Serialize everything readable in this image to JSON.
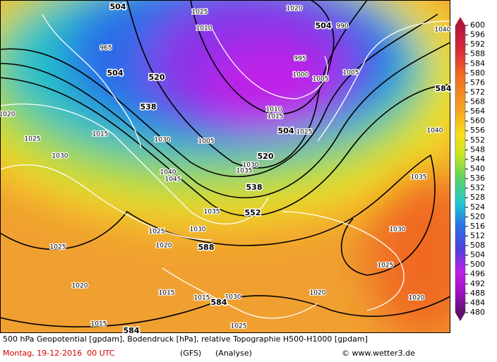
{
  "map": {
    "geopotential_labels": [
      "504",
      "504",
      "520",
      "538",
      "504",
      "520",
      "538",
      "552",
      "588",
      "584",
      "584",
      "584",
      "504"
    ],
    "pressure_labels": [
      "1025",
      "1020",
      "990",
      "1040",
      "1010",
      "965",
      "995",
      "1000",
      "1005",
      "1005",
      "1010",
      "1015",
      "1025",
      "1020",
      "1025",
      "1030",
      "1015",
      "1030",
      "1040",
      "1045",
      "1035",
      "1030",
      "1025",
      "1020",
      "1025",
      "1020",
      "1015",
      "1015",
      "1030",
      "1025",
      "1015",
      "1020",
      "1025",
      "1030",
      "1035",
      "1040",
      "1020",
      "1035",
      "1030",
      "1005"
    ]
  },
  "colorbar": {
    "ticks": [
      600,
      596,
      592,
      588,
      584,
      580,
      576,
      572,
      568,
      564,
      560,
      556,
      552,
      548,
      544,
      540,
      536,
      532,
      528,
      524,
      520,
      516,
      512,
      508,
      504,
      500,
      496,
      492,
      488,
      484,
      480
    ]
  },
  "footer": {
    "description": "500 hPa Geopotential [gpdam], Bodendruck [hPa], relative Topographie H500-H1000 [gpdam]",
    "date": "Montag, 19-12-2016  00 UTC",
    "model": "(GFS)",
    "run": "(Analyse)",
    "source": "© www.wetter3.de"
  }
}
